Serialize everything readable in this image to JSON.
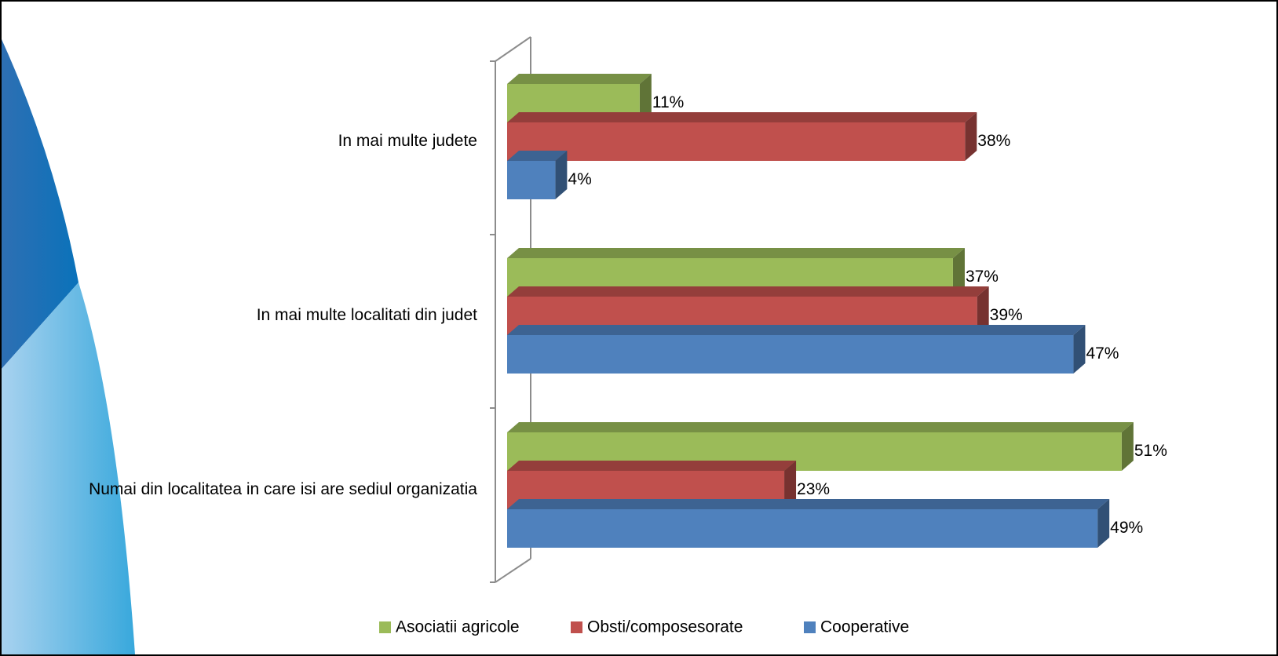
{
  "chart_data": {
    "type": "bar3d-horizontal",
    "categories": [
      "In mai multe judete",
      "In mai multe localitati din judet",
      "Numai din localitatea in care isi are sediul organizatia"
    ],
    "series": [
      {
        "name": "Asociatii agricole",
        "color": "#9bbb59",
        "values": [
          11,
          37,
          51
        ],
        "value_labels": [
          "11%",
          "37%",
          "51%"
        ]
      },
      {
        "name": "Obsti/composesorate",
        "color": "#c0504d",
        "values": [
          38,
          39,
          23
        ],
        "value_labels": [
          "38%",
          "39%",
          "23%"
        ]
      },
      {
        "name": "Cooperative",
        "color": "#4f81bd",
        "values": [
          4,
          47,
          49
        ],
        "value_labels": [
          "4%",
          "47%",
          "49%"
        ]
      }
    ],
    "legend": "bottom"
  }
}
